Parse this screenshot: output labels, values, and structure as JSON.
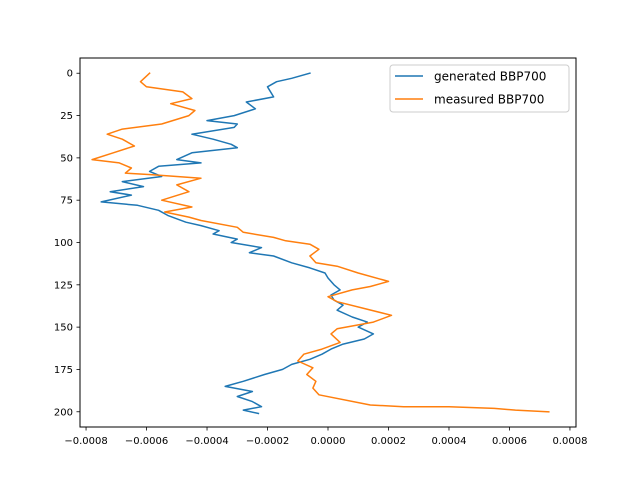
{
  "chart_data": {
    "type": "line",
    "title": "",
    "xlabel": "",
    "ylabel": "",
    "xlim": [
      -0.00082,
      0.00082
    ],
    "ylim": [
      209,
      -9
    ],
    "y_inverted": true,
    "grid": false,
    "legend_location": "top-right",
    "xticks": [
      -0.0008,
      -0.0006,
      -0.0004,
      -0.0002,
      0.0,
      0.0002,
      0.0004,
      0.0006,
      0.0008
    ],
    "xtick_labels": [
      "−0.0008",
      "−0.0006",
      "−0.0004",
      "−0.0002",
      "0.0000",
      "0.0002",
      "0.0004",
      "0.0006",
      "0.0008"
    ],
    "yticks": [
      0,
      25,
      50,
      75,
      100,
      125,
      150,
      175,
      200
    ],
    "ytick_labels": [
      "0",
      "25",
      "50",
      "75",
      "100",
      "125",
      "150",
      "175",
      "200"
    ],
    "series": [
      {
        "name": "generated BBP700",
        "color": "#1f77b4",
        "x": [
          -6e-05,
          -0.00012,
          -0.00017,
          -0.0002,
          -0.00018,
          -0.00027,
          -0.00024,
          -0.00031,
          -0.0004,
          -0.0003,
          -0.00031,
          -0.00045,
          -0.00038,
          -0.00032,
          -0.0003,
          -0.00045,
          -0.0005,
          -0.00042,
          -0.00056,
          -0.00059,
          -0.00055,
          -0.00068,
          -0.00061,
          -0.00072,
          -0.00065,
          -0.00075,
          -0.00063,
          -0.00056,
          -0.00053,
          -0.00047,
          -0.00042,
          -0.00036,
          -0.00038,
          -0.0003,
          -0.00032,
          -0.00022,
          -0.00026,
          -0.00018,
          -0.00012,
          -6e-05,
          -1e-05,
          0.0,
          2e-05,
          4e-05,
          1e-05,
          2e-05,
          5e-05,
          3e-05,
          8e-05,
          0.00013,
          0.0001,
          0.00015,
          0.00012,
          5e-05,
          1e-05,
          -2e-05,
          -6e-05,
          -0.00012,
          -0.00015,
          -0.00021,
          -0.00028,
          -0.00034,
          -0.00025,
          -0.0003,
          -0.00025,
          -0.00022,
          -0.00028,
          -0.00023
        ],
        "y": [
          0,
          3,
          5,
          8,
          14,
          17,
          21,
          25,
          28,
          30,
          32,
          36,
          39,
          42,
          44,
          47,
          51,
          53,
          55,
          58,
          61,
          64,
          67,
          70,
          72,
          76,
          78,
          81,
          84,
          88,
          90,
          93,
          95,
          98,
          100,
          103,
          106,
          108,
          112,
          115,
          118,
          121,
          125,
          128,
          131,
          134,
          137,
          140,
          144,
          147,
          150,
          154,
          157,
          160,
          163,
          166,
          169,
          172,
          175,
          178,
          182,
          185,
          188,
          191,
          194,
          197,
          199,
          201
        ]
      },
      {
        "name": "measured BBP700",
        "color": "#ff7f0e",
        "x": [
          -0.00059,
          -0.00062,
          -0.0006,
          -0.00048,
          -0.00045,
          -0.00052,
          -0.00044,
          -0.00046,
          -0.00055,
          -0.00068,
          -0.00073,
          -0.00068,
          -0.00064,
          -0.00071,
          -0.00078,
          -0.00069,
          -0.00065,
          -0.00067,
          -0.00058,
          -0.00042,
          -0.0005,
          -0.00046,
          -0.00055,
          -0.00045,
          -0.00054,
          -0.00046,
          -0.00042,
          -0.0003,
          -0.00028,
          -0.00018,
          -0.00014,
          -6e-05,
          -3e-05,
          -6e-05,
          -4e-05,
          3e-05,
          0.0001,
          0.0002,
          0.00014,
          8e-05,
          0.0,
          3e-05,
          0.00012,
          0.00021,
          0.00015,
          3e-05,
          1e-05,
          4e-05,
          -2e-05,
          -8e-05,
          -0.0001,
          -5e-05,
          -7e-05,
          -4e-05,
          -5e-05,
          -3e-05,
          0.00014,
          0.00025,
          0.0004,
          0.00055,
          0.00062,
          0.00073
        ],
        "y": [
          0,
          5,
          8,
          11,
          15,
          18,
          22,
          25,
          30,
          33,
          36,
          39,
          43,
          47,
          51,
          53,
          56,
          59,
          60,
          62,
          66,
          70,
          75,
          79,
          82,
          85,
          87,
          91,
          94,
          97,
          99,
          101,
          104,
          108,
          112,
          114,
          118,
          123,
          126,
          128,
          132,
          135,
          139,
          143,
          147,
          151,
          154,
          159,
          163,
          166,
          170,
          174,
          178,
          182,
          186,
          190,
          196,
          197,
          197,
          198,
          199,
          200
        ]
      }
    ]
  }
}
